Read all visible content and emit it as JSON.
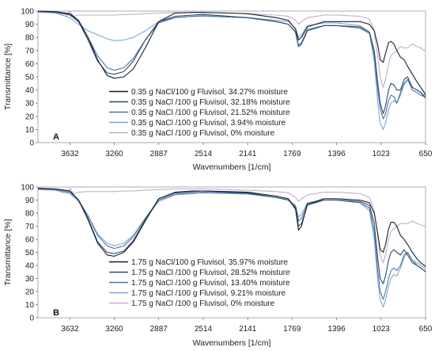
{
  "chart_data": [
    {
      "type": "line",
      "panel_label": "A",
      "xlabel": "Wavenumbers [1/cm]",
      "ylabel": "Transmittance [%]",
      "x_reversed": true,
      "xlim": [
        3900,
        650
      ],
      "ylim": [
        0,
        100
      ],
      "x_ticks": [
        3632,
        3260,
        2887,
        2514,
        2141,
        1769,
        1396,
        1023,
        650
      ],
      "y_ticks": [
        0,
        10,
        20,
        30,
        40,
        50,
        60,
        70,
        80,
        90,
        100
      ],
      "grid": false,
      "legend_position": "bottom-center",
      "series": [
        {
          "name": "0.35 g NaCl/100 g Fluvisol, 34.27% moisture",
          "color": "#1a1f2e",
          "x": [
            3900,
            3750,
            3632,
            3560,
            3480,
            3400,
            3320,
            3260,
            3180,
            3100,
            3000,
            2887,
            2750,
            2600,
            2514,
            2300,
            2141,
            1900,
            1800,
            1740,
            1715,
            1690,
            1640,
            1500,
            1396,
            1200,
            1120,
            1080,
            1050,
            1030,
            1005,
            985,
            960,
            940,
            915,
            890,
            860,
            830,
            800,
            760,
            720,
            690,
            660,
            650
          ],
          "y": [
            100,
            99.5,
            98,
            93,
            80,
            63,
            51,
            49,
            50,
            56,
            72,
            92,
            98.5,
            99,
            99,
            98.5,
            98,
            95,
            93,
            86,
            78,
            80,
            88,
            92,
            92,
            92,
            90,
            85,
            74,
            63,
            61,
            68,
            76,
            77,
            75,
            70,
            65,
            63,
            58,
            52,
            46,
            42,
            38,
            36
          ]
        },
        {
          "name": "0.35 g NaCl /100 g Fluvisol, 32.18% moisture",
          "color": "#2b4a6f",
          "x": [
            3900,
            3750,
            3632,
            3560,
            3480,
            3400,
            3320,
            3260,
            3180,
            3100,
            3000,
            2887,
            2750,
            2600,
            2514,
            2300,
            2141,
            1900,
            1800,
            1740,
            1715,
            1690,
            1640,
            1500,
            1396,
            1200,
            1120,
            1080,
            1050,
            1030,
            1005,
            985,
            960,
            940,
            915,
            890,
            860,
            830,
            800,
            760,
            720,
            690,
            660,
            650
          ],
          "y": [
            100,
            99.5,
            97.5,
            92,
            78,
            62,
            53,
            52,
            54,
            62,
            78,
            92,
            96,
            97,
            97.5,
            96,
            95,
            92,
            90,
            84,
            73,
            75,
            85,
            89,
            89,
            88,
            84,
            70,
            45,
            30,
            22,
            28,
            40,
            45,
            44,
            40,
            40,
            48,
            50,
            42,
            40,
            38,
            35,
            34
          ]
        },
        {
          "name": "0.35 g NaCl /100 g Fluvisol, 21.52% moisture",
          "color": "#4a76a8",
          "x": [
            3900,
            3750,
            3632,
            3560,
            3480,
            3400,
            3320,
            3260,
            3180,
            3100,
            3000,
            2887,
            2750,
            2600,
            2514,
            2300,
            2141,
            1900,
            1800,
            1740,
            1715,
            1690,
            1640,
            1500,
            1396,
            1200,
            1120,
            1080,
            1050,
            1030,
            1005,
            985,
            960,
            940,
            915,
            890,
            860,
            830,
            800,
            760,
            720,
            690,
            660,
            650
          ],
          "y": [
            99.5,
            99,
            97,
            92,
            80,
            66,
            57,
            55,
            57,
            64,
            78,
            91,
            95,
            96,
            96.5,
            95.5,
            95,
            92,
            90,
            84,
            74,
            76,
            86,
            89,
            89,
            87,
            83,
            66,
            40,
            26,
            18,
            22,
            32,
            36,
            35,
            30,
            38,
            45,
            48,
            40,
            38,
            36,
            35,
            34
          ]
        },
        {
          "name": "0.35 g NaCl /100 g Fluvisol, 3.94% moisture",
          "color": "#7fa6cf",
          "x": [
            3900,
            3750,
            3632,
            3560,
            3480,
            3400,
            3320,
            3260,
            3180,
            3100,
            3000,
            2887,
            2750,
            2600,
            2514,
            2300,
            2141,
            1900,
            1800,
            1740,
            1715,
            1690,
            1640,
            1500,
            1396,
            1200,
            1120,
            1080,
            1050,
            1030,
            1005,
            985,
            960,
            940,
            915,
            890,
            860,
            830,
            800,
            760,
            720,
            690,
            660,
            650
          ],
          "y": [
            99.5,
            98.5,
            95,
            90,
            85,
            82,
            79,
            77.5,
            78,
            80,
            85,
            92,
            95,
            96,
            96,
            95.5,
            95,
            93,
            92,
            87,
            80,
            82,
            89,
            91,
            91,
            89,
            84,
            62,
            30,
            15,
            10,
            15,
            25,
            30,
            32,
            30,
            36,
            44,
            48,
            42,
            40,
            38,
            36,
            35
          ]
        },
        {
          "name": "0.35 g NaCl /100 g Fluvisol, 0% moisture",
          "color": "#c9a8cf",
          "x": [
            3900,
            3750,
            3700,
            3660,
            3632,
            3600,
            3560,
            3480,
            3400,
            3320,
            3260,
            3180,
            3100,
            3000,
            2887,
            2750,
            2600,
            2514,
            2300,
            2141,
            1900,
            1800,
            1740,
            1715,
            1690,
            1640,
            1500,
            1396,
            1200,
            1120,
            1080,
            1050,
            1030,
            1005,
            985,
            960,
            940,
            915,
            890,
            860,
            830,
            800,
            760,
            720,
            690,
            660,
            650
          ],
          "y": [
            99,
            98.5,
            97,
            96,
            100,
            96,
            97,
            97,
            97,
            97,
            97,
            97.5,
            97.5,
            98,
            98.5,
            99,
            99,
            99,
            98.5,
            98,
            97,
            96,
            93,
            90,
            92,
            95,
            97,
            97,
            96,
            94,
            85,
            65,
            50,
            42,
            48,
            60,
            66,
            68,
            70,
            73,
            72,
            72,
            75,
            73,
            72,
            70,
            70
          ]
        }
      ]
    },
    {
      "type": "line",
      "panel_label": "B",
      "xlabel": "Wavenumbers [1/cm]",
      "ylabel": "Transmittance [%]",
      "x_reversed": true,
      "xlim": [
        3900,
        650
      ],
      "ylim": [
        0,
        100
      ],
      "x_ticks": [
        3632,
        3260,
        2887,
        2514,
        2141,
        1769,
        1396,
        1023,
        650
      ],
      "y_ticks": [
        0,
        10,
        20,
        30,
        40,
        50,
        60,
        70,
        80,
        90,
        100
      ],
      "grid": false,
      "legend_position": "bottom-center",
      "series": [
        {
          "name": "1.75 g NaCl/100 g Fluvisol, 35.97% moisture",
          "color": "#1a1f2e",
          "x": [
            3900,
            3750,
            3632,
            3560,
            3480,
            3400,
            3320,
            3260,
            3180,
            3100,
            3000,
            2887,
            2750,
            2600,
            2514,
            2300,
            2141,
            1900,
            1800,
            1740,
            1715,
            1690,
            1640,
            1500,
            1396,
            1200,
            1120,
            1080,
            1050,
            1030,
            1005,
            985,
            960,
            940,
            915,
            890,
            860,
            830,
            800,
            760,
            720,
            690,
            660,
            650
          ],
          "y": [
            99,
            98.5,
            97,
            90,
            75,
            57,
            48,
            47,
            50,
            58,
            74,
            91,
            96,
            97,
            97,
            96.5,
            96,
            93,
            91,
            83,
            67,
            70,
            87,
            91,
            91,
            90,
            88,
            80,
            64,
            52,
            50,
            56,
            68,
            73,
            73,
            70,
            63,
            60,
            56,
            50,
            45,
            42,
            40,
            39
          ]
        },
        {
          "name": "1.75 g NaCl /100 g Fluvisol, 28.52% moisture",
          "color": "#2b4a6f",
          "x": [
            3900,
            3750,
            3632,
            3560,
            3480,
            3400,
            3320,
            3260,
            3180,
            3100,
            3000,
            2887,
            2750,
            2600,
            2514,
            2300,
            2141,
            1900,
            1800,
            1740,
            1715,
            1690,
            1640,
            1500,
            1396,
            1200,
            1120,
            1080,
            1050,
            1030,
            1005,
            985,
            960,
            940,
            915,
            890,
            860,
            830,
            800,
            760,
            720,
            690,
            660,
            650
          ],
          "y": [
            99,
            98.5,
            97,
            90,
            76,
            58,
            50,
            49,
            51,
            59,
            75,
            91,
            95.5,
            96.5,
            97,
            96,
            95.5,
            92,
            90,
            84,
            70,
            72,
            86,
            90,
            90,
            89,
            86,
            72,
            45,
            30,
            26,
            32,
            44,
            50,
            52,
            50,
            48,
            52,
            48,
            42,
            40,
            38,
            36,
            35
          ]
        },
        {
          "name": "1.75 g NaCl /100 g Fluvisol, 13.40% moisture",
          "color": "#4a76a8",
          "x": [
            3900,
            3750,
            3632,
            3560,
            3480,
            3400,
            3320,
            3260,
            3180,
            3100,
            3000,
            2887,
            2750,
            2600,
            2514,
            2300,
            2141,
            1900,
            1800,
            1740,
            1715,
            1690,
            1640,
            1500,
            1396,
            1200,
            1120,
            1080,
            1050,
            1030,
            1005,
            985,
            960,
            940,
            915,
            890,
            860,
            830,
            800,
            760,
            720,
            690,
            660,
            650
          ],
          "y": [
            98.5,
            98,
            96,
            90,
            78,
            63,
            55,
            53,
            55,
            62,
            76,
            90,
            94.5,
            95.5,
            96,
            95.5,
            95,
            92,
            90,
            85,
            74,
            76,
            87,
            90,
            90,
            88,
            84,
            66,
            36,
            20,
            14,
            20,
            30,
            36,
            38,
            36,
            40,
            48,
            50,
            44,
            40,
            38,
            36,
            35
          ]
        },
        {
          "name": "1.75 g NaCl /100 g Fluvisol, 9.21% moisture",
          "color": "#7fa6cf",
          "x": [
            3900,
            3750,
            3632,
            3560,
            3480,
            3400,
            3320,
            3260,
            3180,
            3100,
            3000,
            2887,
            2750,
            2600,
            2514,
            2300,
            2141,
            1900,
            1800,
            1740,
            1715,
            1690,
            1640,
            1500,
            1396,
            1200,
            1120,
            1080,
            1050,
            1030,
            1005,
            985,
            960,
            940,
            915,
            890,
            860,
            830,
            800,
            760,
            720,
            690,
            660,
            650
          ],
          "y": [
            98.5,
            97.5,
            95,
            89,
            78,
            64,
            57,
            55,
            57,
            63,
            76,
            89,
            94,
            95,
            95.5,
            95,
            94.5,
            92,
            90,
            86,
            77,
            79,
            88,
            90,
            90,
            88,
            82,
            60,
            28,
            14,
            8,
            14,
            24,
            30,
            33,
            32,
            38,
            46,
            50,
            44,
            42,
            40,
            38,
            37
          ]
        },
        {
          "name": "1.75 g NaCl /100 g Fluvisol, 0% moisture",
          "color": "#c9a8cf",
          "x": [
            3900,
            3750,
            3700,
            3660,
            3632,
            3600,
            3560,
            3480,
            3400,
            3320,
            3260,
            3180,
            3100,
            3000,
            2887,
            2750,
            2600,
            2514,
            2300,
            2141,
            1900,
            1800,
            1740,
            1715,
            1690,
            1640,
            1500,
            1396,
            1200,
            1120,
            1080,
            1050,
            1030,
            1005,
            985,
            960,
            940,
            915,
            890,
            860,
            830,
            800,
            760,
            720,
            690,
            660,
            650
          ],
          "y": [
            98,
            97.5,
            96,
            95.5,
            99,
            95,
            96,
            96.5,
            96.5,
            96.5,
            96.5,
            97,
            97,
            97.5,
            98,
            98.5,
            98.5,
            98.5,
            98,
            97.5,
            96.5,
            95.5,
            92,
            89,
            91,
            94,
            96,
            96,
            95,
            92,
            82,
            62,
            48,
            42,
            48,
            60,
            66,
            68,
            70,
            72,
            72,
            72,
            74,
            72,
            71,
            70,
            70
          ]
        }
      ]
    }
  ]
}
